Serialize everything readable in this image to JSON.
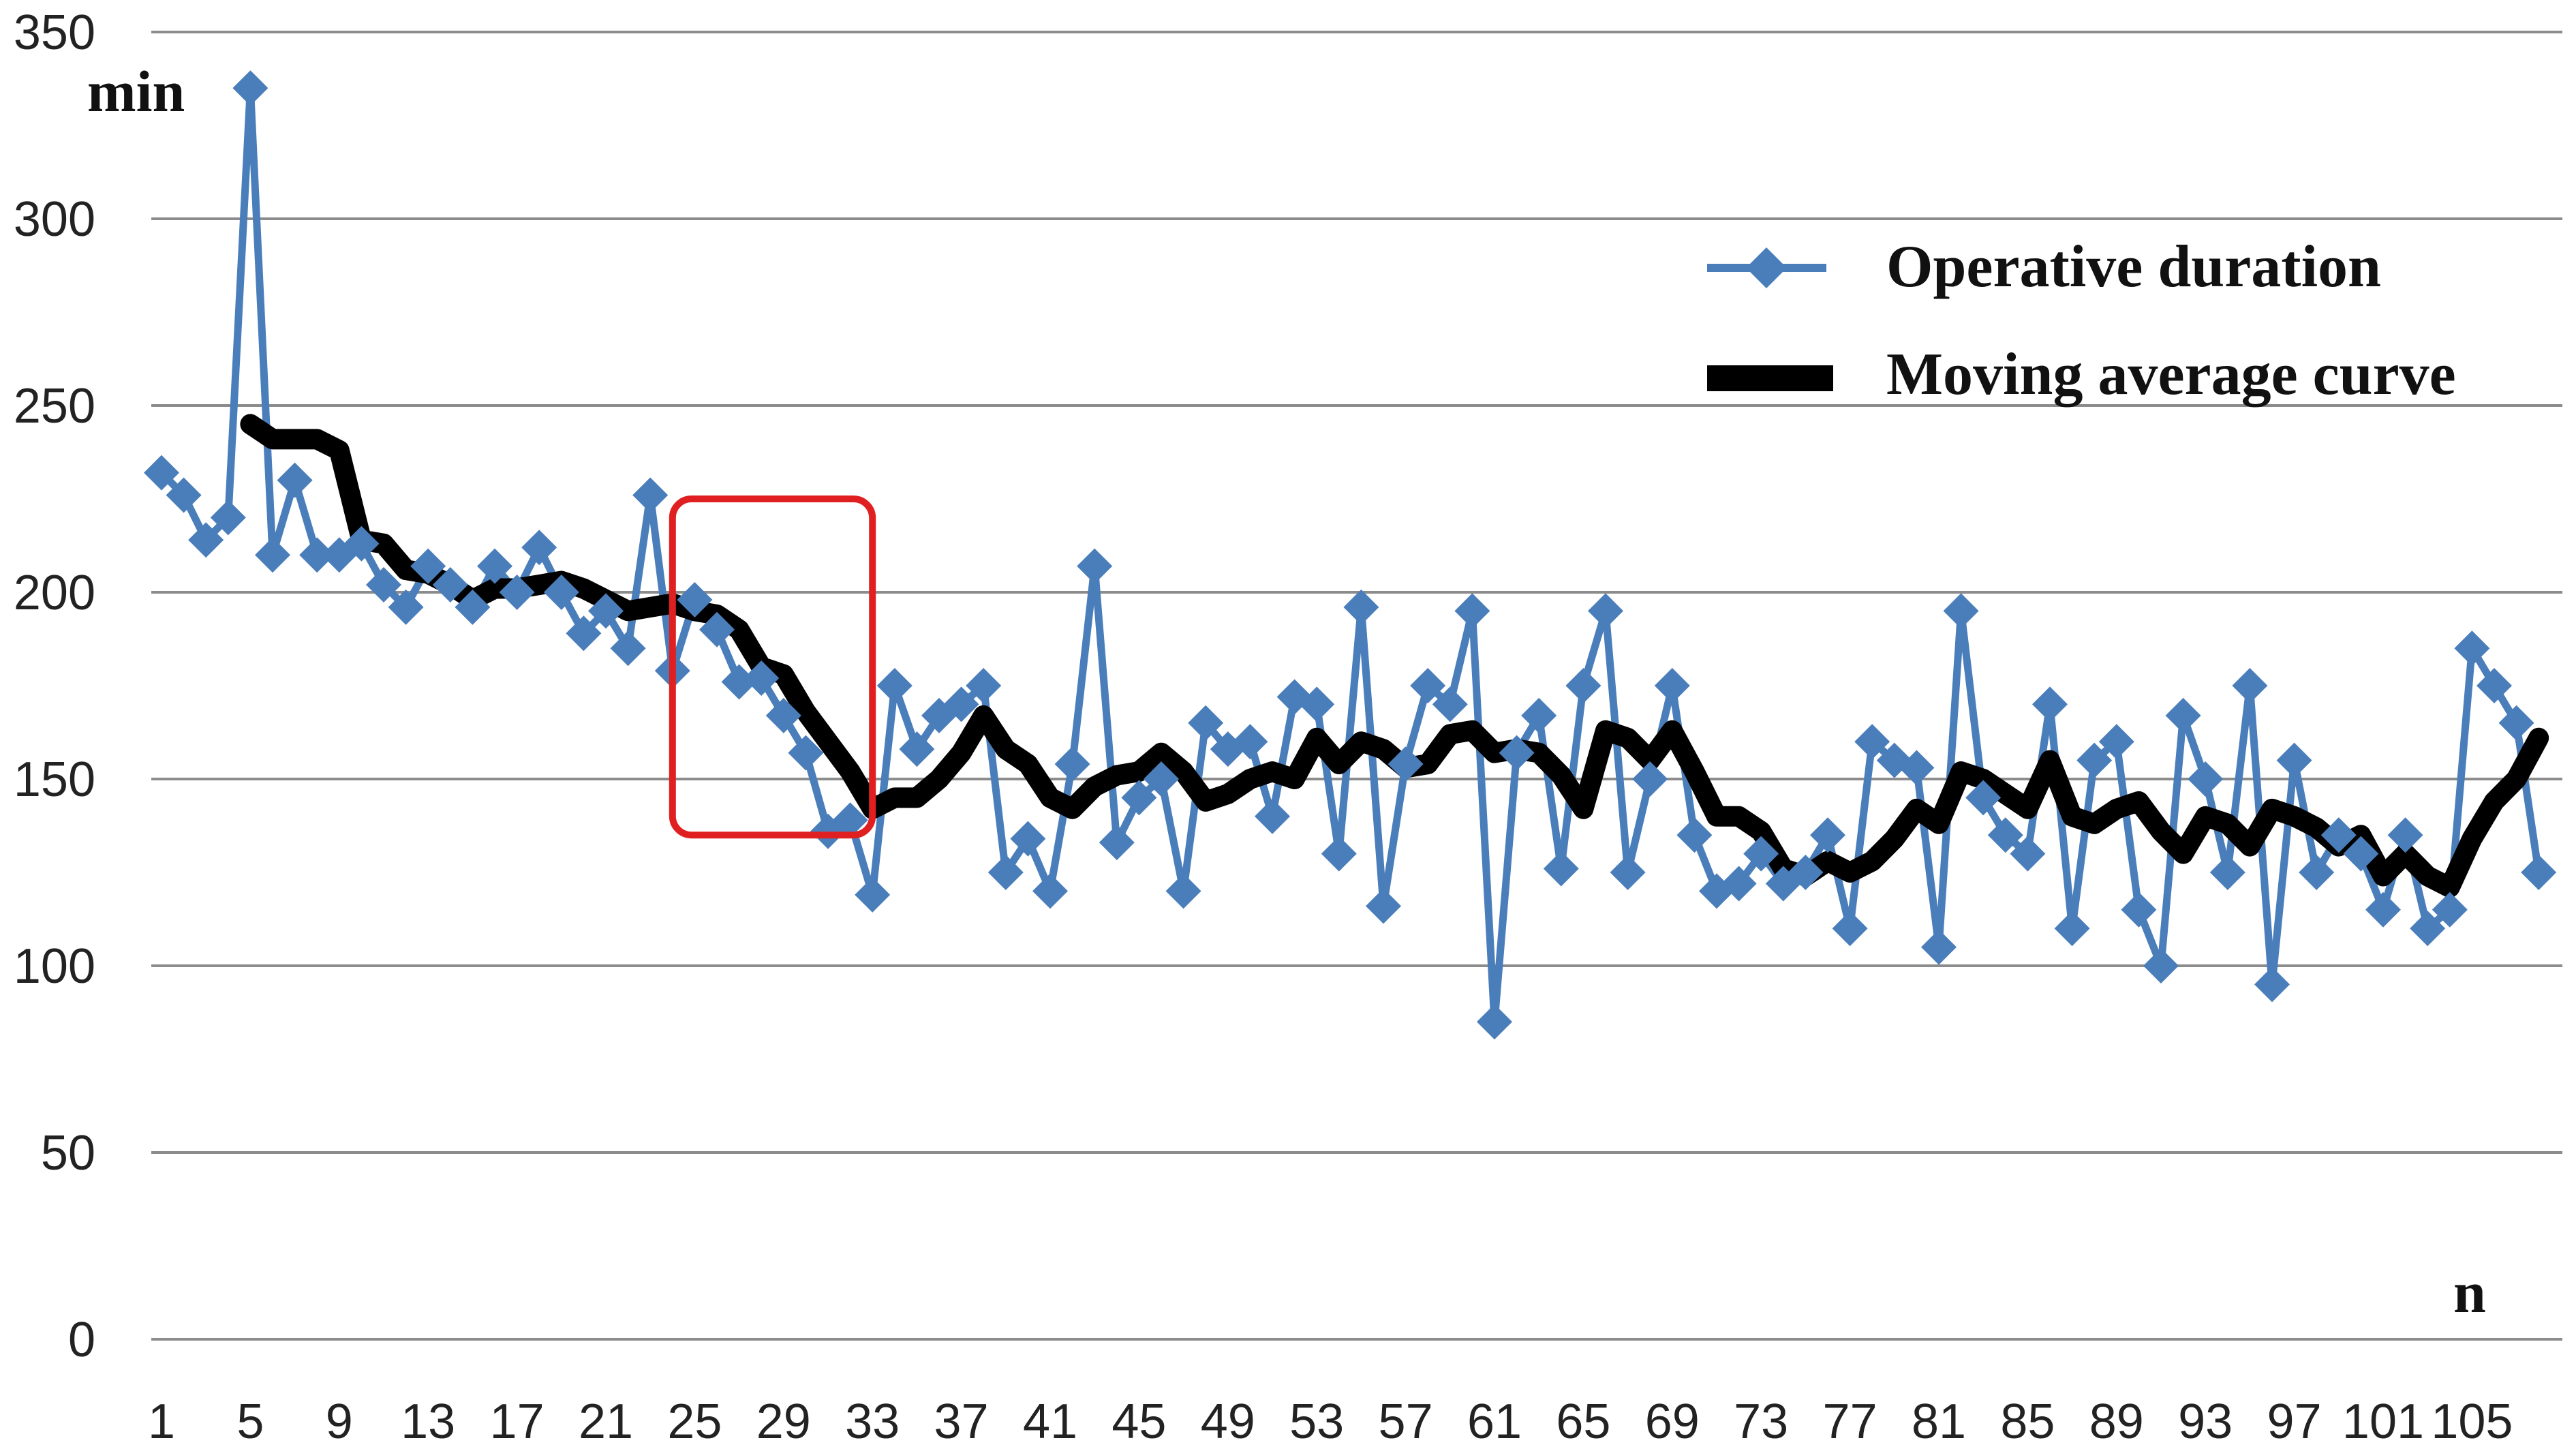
{
  "chart_data": {
    "type": "line",
    "ylabel": "min",
    "xlabel": "n",
    "ylim": [
      0,
      350
    ],
    "yticks": [
      0,
      50,
      100,
      150,
      200,
      250,
      300,
      350
    ],
    "xtick_labels": [
      "1",
      "5",
      "9",
      "13",
      "17",
      "21",
      "25",
      "29",
      "33",
      "37",
      "41",
      "45",
      "49",
      "53",
      "57",
      "61",
      "65",
      "69",
      "73",
      "77",
      "81",
      "85",
      "89",
      "93",
      "97",
      "101",
      "105"
    ],
    "grid": "horizontal",
    "legend_position": "top-right",
    "x": [
      1,
      2,
      3,
      4,
      5,
      6,
      7,
      8,
      9,
      10,
      11,
      12,
      13,
      14,
      15,
      16,
      17,
      18,
      19,
      20,
      21,
      22,
      23,
      24,
      25,
      26,
      27,
      28,
      29,
      30,
      31,
      32,
      33,
      34,
      35,
      36,
      37,
      38,
      39,
      40,
      41,
      42,
      43,
      44,
      45,
      46,
      47,
      48,
      49,
      50,
      51,
      52,
      53,
      54,
      55,
      56,
      57,
      58,
      59,
      60,
      61,
      62,
      63,
      64,
      65,
      66,
      67,
      68,
      69,
      70,
      71,
      72,
      73,
      74,
      75,
      76,
      77,
      78,
      79,
      80,
      81,
      82,
      83,
      84,
      85,
      86,
      87,
      88,
      89,
      90,
      91,
      92,
      93,
      94,
      95,
      96,
      97,
      98,
      99,
      100,
      101,
      102,
      103,
      104,
      105,
      106,
      107,
      108
    ],
    "series": [
      {
        "name": "Operative duration",
        "color": "#4a7ebb",
        "marker": "diamond",
        "values": [
          232,
          226,
          214,
          220,
          335,
          210,
          230,
          210,
          210,
          213,
          202,
          196,
          207,
          202,
          196,
          207,
          200,
          212,
          200,
          189,
          195,
          185,
          226,
          179,
          198,
          190,
          176,
          177,
          167,
          157,
          136,
          139,
          119,
          175,
          158,
          167,
          170,
          175,
          125,
          134,
          120,
          154,
          207,
          133,
          145,
          150,
          120,
          165,
          158,
          160,
          140,
          172,
          170,
          130,
          196,
          116,
          154,
          175,
          170,
          195,
          85,
          157,
          167,
          126,
          175,
          195,
          125,
          150,
          175,
          135,
          120,
          122,
          130,
          122,
          125,
          135,
          110,
          160,
          155,
          153,
          105,
          195,
          145,
          135,
          130,
          170,
          110,
          155,
          160,
          115,
          100,
          167,
          150,
          125,
          175,
          95,
          155,
          125,
          135,
          130,
          115,
          135,
          110,
          115,
          185,
          175,
          165,
          125
        ]
      },
      {
        "name": "Moving average curve",
        "color": "#000000",
        "values": [
          null,
          null,
          null,
          null,
          245,
          241,
          241,
          241,
          238,
          214,
          213,
          206,
          205,
          202,
          198,
          201,
          201,
          202,
          203,
          201,
          198,
          195,
          196,
          197,
          195,
          194,
          190,
          180,
          178,
          168,
          160,
          152,
          142,
          145,
          145,
          150,
          157,
          167,
          158,
          154,
          145,
          142,
          148,
          151,
          152,
          157,
          152,
          144,
          146,
          150,
          152,
          150,
          161,
          154,
          160,
          158,
          153,
          154,
          162,
          163,
          157,
          158,
          157,
          151,
          142,
          163,
          161,
          155,
          163,
          152,
          140,
          140,
          136,
          126,
          124,
          128,
          125,
          128,
          134,
          142,
          138,
          152,
          150,
          146,
          142,
          155,
          140,
          138,
          142,
          144,
          136,
          130,
          140,
          138,
          132,
          142,
          140,
          137,
          132,
          135,
          124,
          130,
          124,
          121,
          134,
          144,
          150,
          161
        ]
      }
    ],
    "annotations": [
      {
        "type": "rectangle",
        "color": "#e02020",
        "x_range": [
          24,
          33
        ],
        "y_range": [
          135,
          225
        ]
      }
    ]
  }
}
